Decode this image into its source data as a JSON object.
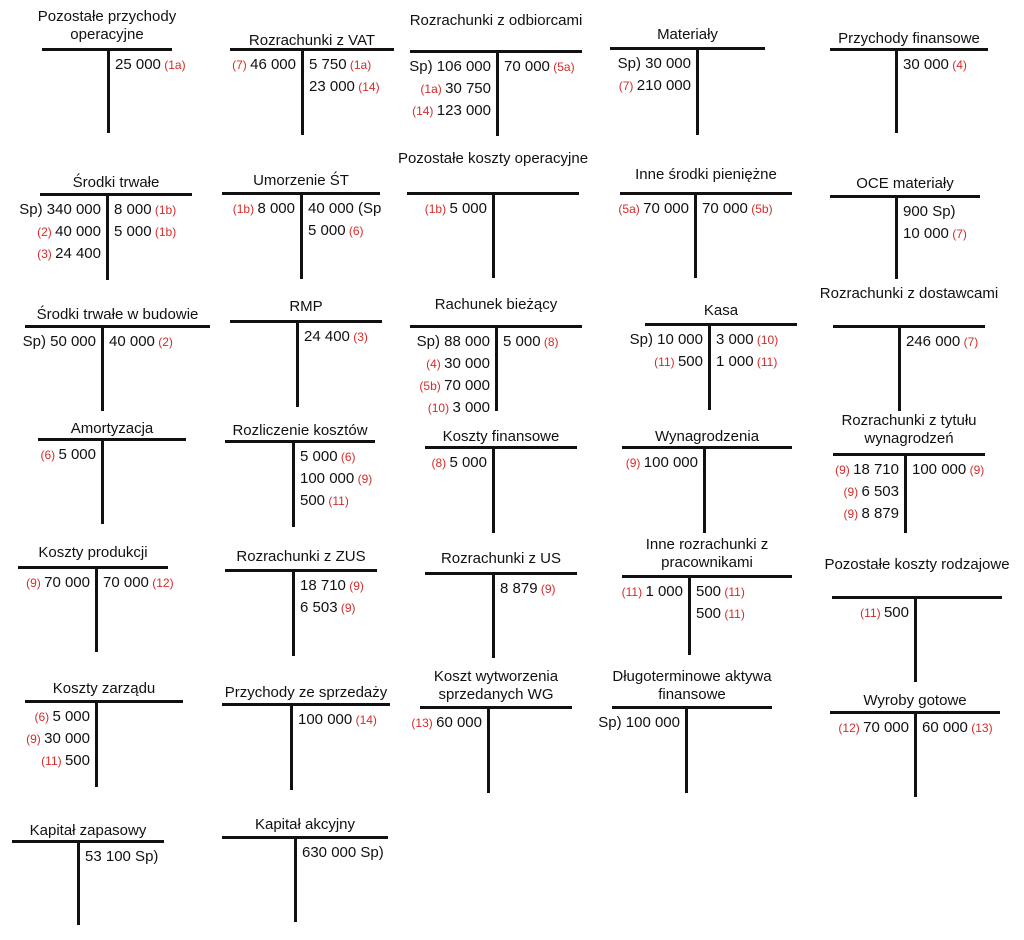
{
  "colors": {
    "ink": "#111111",
    "ref": "#d62b2b"
  },
  "accounts": [
    {
      "title": "Pozostałe przychody operacyjne",
      "debit": [],
      "credit": [
        {
          "amount": "25 000",
          "ref": "(1a)"
        }
      ]
    },
    {
      "title": "Rozrachunki z VAT",
      "debit": [
        {
          "ref": "(7)",
          "amount": "46 000"
        }
      ],
      "credit": [
        {
          "amount": "5 750",
          "ref": "(1a)"
        },
        {
          "amount": "23 000",
          "ref": "(14)"
        }
      ]
    },
    {
      "title": "Rozrachunki z odbiorcami",
      "debit": [
        {
          "prefix": "Sp)",
          "amount": "106 000"
        },
        {
          "ref": "(1a)",
          "amount": "30 750"
        },
        {
          "ref": "(14)",
          "amount": "123 000"
        }
      ],
      "credit": [
        {
          "amount": "70 000",
          "ref": "(5a)"
        }
      ]
    },
    {
      "title": "Materiały",
      "debit": [
        {
          "prefix": "Sp)",
          "amount": "30 000"
        },
        {
          "ref": "(7)",
          "amount": "210 000"
        }
      ],
      "credit": []
    },
    {
      "title": "Przychody finansowe",
      "debit": [],
      "credit": [
        {
          "amount": "30 000",
          "ref": "(4)"
        }
      ]
    },
    {
      "title": "Środki trwałe",
      "debit": [
        {
          "prefix": "Sp)",
          "amount": "340 000"
        },
        {
          "ref": "(2)",
          "amount": "40 000"
        },
        {
          "ref": "(3)",
          "amount": "24 400"
        }
      ],
      "credit": [
        {
          "amount": "8 000",
          "ref": "(1b)"
        },
        {
          "amount": "5 000",
          "ref": "(1b)"
        }
      ]
    },
    {
      "title": "Umorzenie ŚT",
      "debit": [
        {
          "ref": "(1b)",
          "amount": "8 000"
        }
      ],
      "credit": [
        {
          "amount": "40 000",
          "suffix": "(Sp"
        },
        {
          "amount": "5 000",
          "ref": "(6)"
        }
      ]
    },
    {
      "title": "Pozostałe koszty operacyjne",
      "debit": [
        {
          "ref": "(1b)",
          "amount": "5 000"
        }
      ],
      "credit": []
    },
    {
      "title": "Inne środki pieniężne",
      "debit": [
        {
          "ref": "(5a)",
          "amount": "70 000"
        }
      ],
      "credit": [
        {
          "amount": "70 000",
          "ref": "(5b)"
        }
      ]
    },
    {
      "title": "OCE materiały",
      "debit": [],
      "credit": [
        {
          "amount": "900",
          "suffix": "Sp)"
        },
        {
          "amount": "10 000",
          "ref": "(7)"
        }
      ]
    },
    {
      "title": "Środki trwałe w budowie",
      "debit": [
        {
          "prefix": "Sp)",
          "amount": "50 000"
        }
      ],
      "credit": [
        {
          "amount": "40 000",
          "ref": "(2)"
        }
      ]
    },
    {
      "title": "RMP",
      "debit": [],
      "credit": [
        {
          "amount": "24 400",
          "ref": "(3)"
        }
      ]
    },
    {
      "title": "Rachunek bieżący",
      "debit": [
        {
          "prefix": "Sp)",
          "amount": "88 000"
        },
        {
          "ref": "(4)",
          "amount": "30 000"
        },
        {
          "ref": "(5b)",
          "amount": "70 000"
        },
        {
          "ref": "(10)",
          "amount": "3 000"
        }
      ],
      "credit": [
        {
          "amount": "5 000",
          "ref": "(8)"
        }
      ]
    },
    {
      "title": "Kasa",
      "debit": [
        {
          "prefix": "Sp)",
          "amount": "10 000"
        },
        {
          "ref": "(11)",
          "amount": "500"
        }
      ],
      "credit": [
        {
          "amount": "3 000",
          "ref": "(10)"
        },
        {
          "amount": "1 000",
          "ref": "(11)"
        }
      ]
    },
    {
      "title": "Rozrachunki z dostawcami",
      "debit": [],
      "credit": [
        {
          "amount": "246 000",
          "ref": "(7)"
        }
      ]
    },
    {
      "title": "Amortyzacja",
      "debit": [
        {
          "ref": "(6)",
          "amount": "5 000"
        }
      ],
      "credit": []
    },
    {
      "title": "Rozliczenie kosztów",
      "debit": [],
      "credit": [
        {
          "amount": "5 000",
          "ref": "(6)"
        },
        {
          "amount": "100 000",
          "ref": "(9)"
        },
        {
          "amount": "500",
          "ref": "(11)"
        }
      ]
    },
    {
      "title": "Koszty finansowe",
      "debit": [
        {
          "ref": "(8)",
          "amount": "5 000"
        }
      ],
      "credit": []
    },
    {
      "title": "Wynagrodzenia",
      "debit": [
        {
          "ref": "(9)",
          "amount": "100 000"
        }
      ],
      "credit": []
    },
    {
      "title": "Rozrachunki z tytułu wynagrodzeń",
      "debit": [
        {
          "ref": "(9)",
          "amount": "18 710"
        },
        {
          "ref": "(9)",
          "amount": "6 503"
        },
        {
          "ref": "(9)",
          "amount": "8 879"
        }
      ],
      "credit": [
        {
          "amount": "100 000",
          "ref": "(9)"
        }
      ]
    },
    {
      "title": "Koszty produkcji",
      "debit": [
        {
          "ref": "(9)",
          "amount": "70 000"
        }
      ],
      "credit": [
        {
          "amount": "70 000",
          "ref": "(12)"
        }
      ]
    },
    {
      "title": "Rozrachunki z ZUS",
      "debit": [],
      "credit": [
        {
          "amount": "18 710",
          "ref": "(9)"
        },
        {
          "amount": "6 503",
          "ref": "(9)"
        }
      ]
    },
    {
      "title": "Rozrachunki z US",
      "debit": [],
      "credit": [
        {
          "amount": "8 879",
          "ref": "(9)"
        }
      ]
    },
    {
      "title": "Inne rozrachunki z pracownikami",
      "debit": [
        {
          "ref": "(11)",
          "amount": "1 000"
        }
      ],
      "credit": [
        {
          "amount": "500",
          "ref": "(11)"
        },
        {
          "amount": "500",
          "ref": "(11)"
        }
      ]
    },
    {
      "title": "Pozostałe koszty rodzajowe",
      "debit": [
        {
          "ref": "(11)",
          "amount": "500"
        }
      ],
      "credit": []
    },
    {
      "title": "Koszty zarządu",
      "debit": [
        {
          "ref": "(6)",
          "amount": "5 000"
        },
        {
          "ref": "(9)",
          "amount": "30 000"
        },
        {
          "ref": "(11)",
          "amount": "500"
        }
      ],
      "credit": []
    },
    {
      "title": "Przychody ze sprzedaży",
      "debit": [],
      "credit": [
        {
          "amount": "100 000",
          "ref": "(14)"
        }
      ]
    },
    {
      "title": "Koszt wytworzenia sprzedanych WG",
      "debit": [
        {
          "ref": "(13)",
          "amount": "60 000"
        }
      ],
      "credit": []
    },
    {
      "title": "Długoterminowe aktywa finansowe",
      "debit": [
        {
          "prefix": "Sp)",
          "amount": "100 000"
        }
      ],
      "credit": []
    },
    {
      "title": "Wyroby gotowe",
      "debit": [
        {
          "ref": "(12)",
          "amount": "70 000"
        }
      ],
      "credit": [
        {
          "amount": "60 000",
          "ref": "(13)"
        }
      ]
    },
    {
      "title": "Kapitał zapasowy",
      "debit": [],
      "credit": [
        {
          "amount": "53 100",
          "suffix": "Sp)"
        }
      ]
    },
    {
      "title": "Kapitał akcyjny",
      "debit": [],
      "credit": [
        {
          "amount": "630 000",
          "suffix": "Sp)"
        }
      ]
    }
  ]
}
